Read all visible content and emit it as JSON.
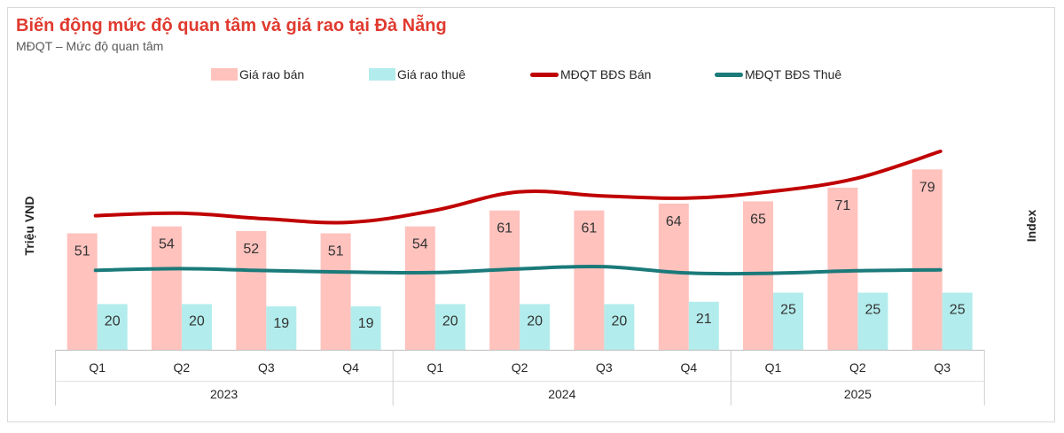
{
  "chart_data": {
    "type": "bar",
    "title": "Biến động mức độ quan tâm và giá rao tại Đà Nẵng",
    "subtitle": "MĐQT – Mức độ quan tâm",
    "ylabel_left": "Triệu VND",
    "ylabel_right": "Index",
    "categories": [
      "Q1",
      "Q2",
      "Q3",
      "Q4",
      "Q1",
      "Q2",
      "Q3",
      "Q4",
      "Q1",
      "Q2",
      "Q3"
    ],
    "years": [
      {
        "label": "2023",
        "count": 4
      },
      {
        "label": "2024",
        "count": 4
      },
      {
        "label": "2025",
        "count": 3
      }
    ],
    "ylim_left": [
      0,
      95
    ],
    "legend_position": "top",
    "bar_series": [
      {
        "name": "Giá rao bán",
        "values": [
          51,
          54,
          52,
          51,
          54,
          61,
          61,
          64,
          65,
          71,
          79
        ],
        "color": "#ffc2bd",
        "label_color": "#333333"
      },
      {
        "name": "Giá rao thuê",
        "values": [
          20,
          20,
          19,
          19,
          20,
          20,
          20,
          21,
          25,
          25,
          25
        ],
        "color": "#b3ecec",
        "label_color": "#333333"
      }
    ],
    "line_series": [
      {
        "name": "MĐQT BĐS Bán",
        "values": [
          58.7,
          59.8,
          57.4,
          55.8,
          60.9,
          69.1,
          67.4,
          66.4,
          69.3,
          75.0,
          86.9
        ],
        "color": "#c00000",
        "axis": "right"
      },
      {
        "name": "MĐQT BĐS Thuê",
        "values": [
          34.8,
          35.5,
          34.7,
          34.0,
          33.8,
          35.4,
          36.4,
          33.6,
          33.5,
          34.6,
          35.0
        ],
        "color": "#1b7a7a",
        "axis": "right"
      }
    ],
    "ylim_right": [
      0,
      95
    ]
  }
}
